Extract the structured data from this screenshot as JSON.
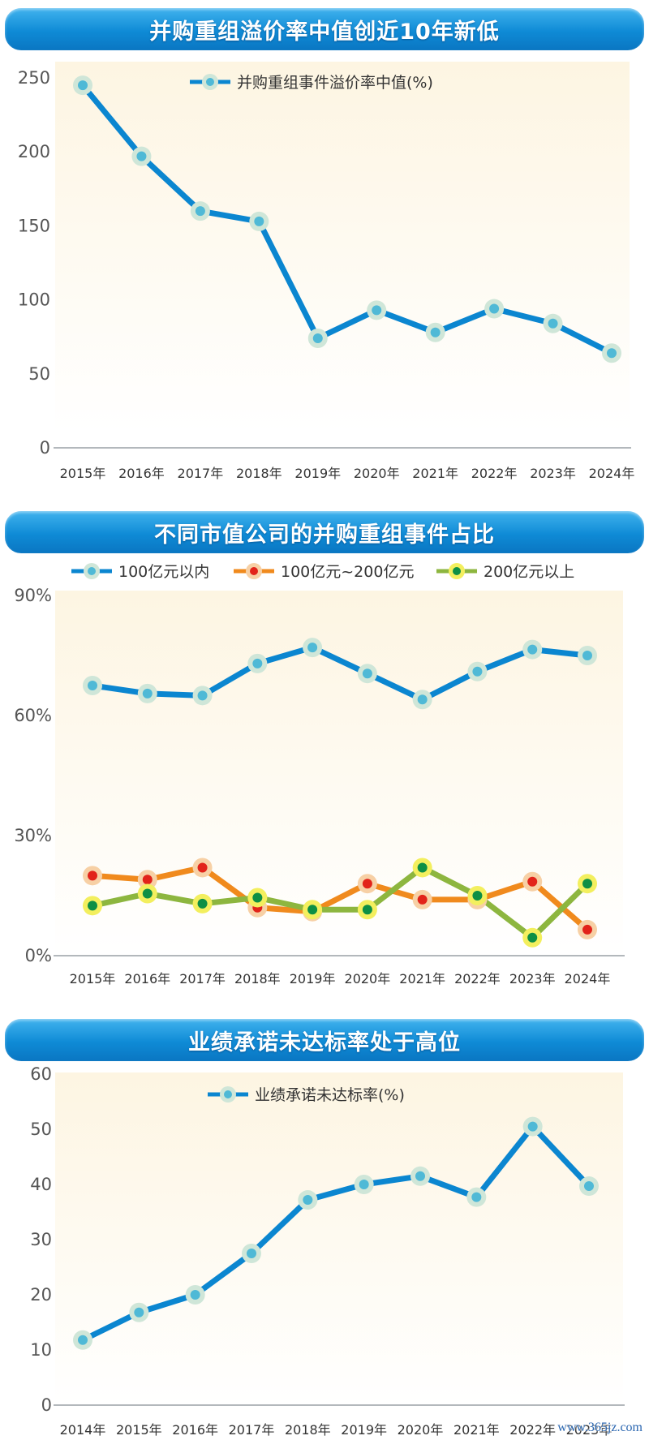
{
  "chart_data": [
    {
      "type": "line",
      "title": "并购重组溢价率中值创近10年新低",
      "categories": [
        "2015年",
        "2016年",
        "2017年",
        "2018年",
        "2019年",
        "2020年",
        "2021年",
        "2022年",
        "2023年",
        "2024年"
      ],
      "series": [
        {
          "name": "并购重组事件溢价率中值(%)",
          "values": [
            245,
            197,
            160,
            153,
            74,
            93,
            78,
            94,
            84,
            64
          ]
        }
      ],
      "yticks": [
        "0",
        "50",
        "100",
        "150",
        "200",
        "250"
      ],
      "ylim": [
        0,
        250
      ],
      "grid": false,
      "legend": "top-center"
    },
    {
      "type": "line",
      "title": "不同市值公司的并购重组事件占比",
      "categories": [
        "2015年",
        "2016年",
        "2017年",
        "2018年",
        "2019年",
        "2020年",
        "2021年",
        "2022年",
        "2023年",
        "2024年"
      ],
      "series": [
        {
          "name": "100亿元以内",
          "values": [
            67.5,
            65.5,
            65,
            73,
            77,
            70.5,
            64,
            71,
            76.5,
            75
          ]
        },
        {
          "name": "100亿元~200亿元",
          "values": [
            20,
            19,
            22,
            12,
            11,
            18,
            14,
            14,
            18.5,
            6.5
          ]
        },
        {
          "name": "200亿元以上",
          "values": [
            12.5,
            15.5,
            13,
            14.5,
            11.5,
            11.5,
            22,
            15,
            4.5,
            18
          ]
        }
      ],
      "yticks": [
        "0%",
        "30%",
        "60%",
        "90%"
      ],
      "ylim": [
        0,
        90
      ],
      "grid": false,
      "legend": "top"
    },
    {
      "type": "line",
      "title": "业绩承诺未达标率处于高位",
      "categories": [
        "2014年",
        "2015年",
        "2016年",
        "2017年",
        "2018年",
        "2019年",
        "2020年",
        "2021年",
        "2022年",
        "2023年"
      ],
      "series": [
        {
          "name": "业绩承诺未达标率(%)",
          "values": [
            11.8,
            16.8,
            20,
            27.5,
            37.2,
            40,
            41.5,
            37.7,
            50.5,
            39.7
          ]
        }
      ],
      "yticks": [
        "0",
        "10",
        "20",
        "30",
        "40",
        "50",
        "60"
      ],
      "ylim": [
        0,
        60
      ],
      "grid": false,
      "legend": "top-center"
    }
  ],
  "colors": {
    "blue_line": "#0b86d0",
    "blue_dot": "#4fb9d6",
    "blue_halo": "#cfe6d8",
    "orange_line": "#f08a1d",
    "red_dot": "#e2231a",
    "orange_halo": "#f7d0a5",
    "green_line": "#8db63f",
    "green_dot": "#0d8f45",
    "yellow_halo": "#f3ef5e",
    "banner": "#0d86d2"
  },
  "watermark": "www.365jz.com"
}
